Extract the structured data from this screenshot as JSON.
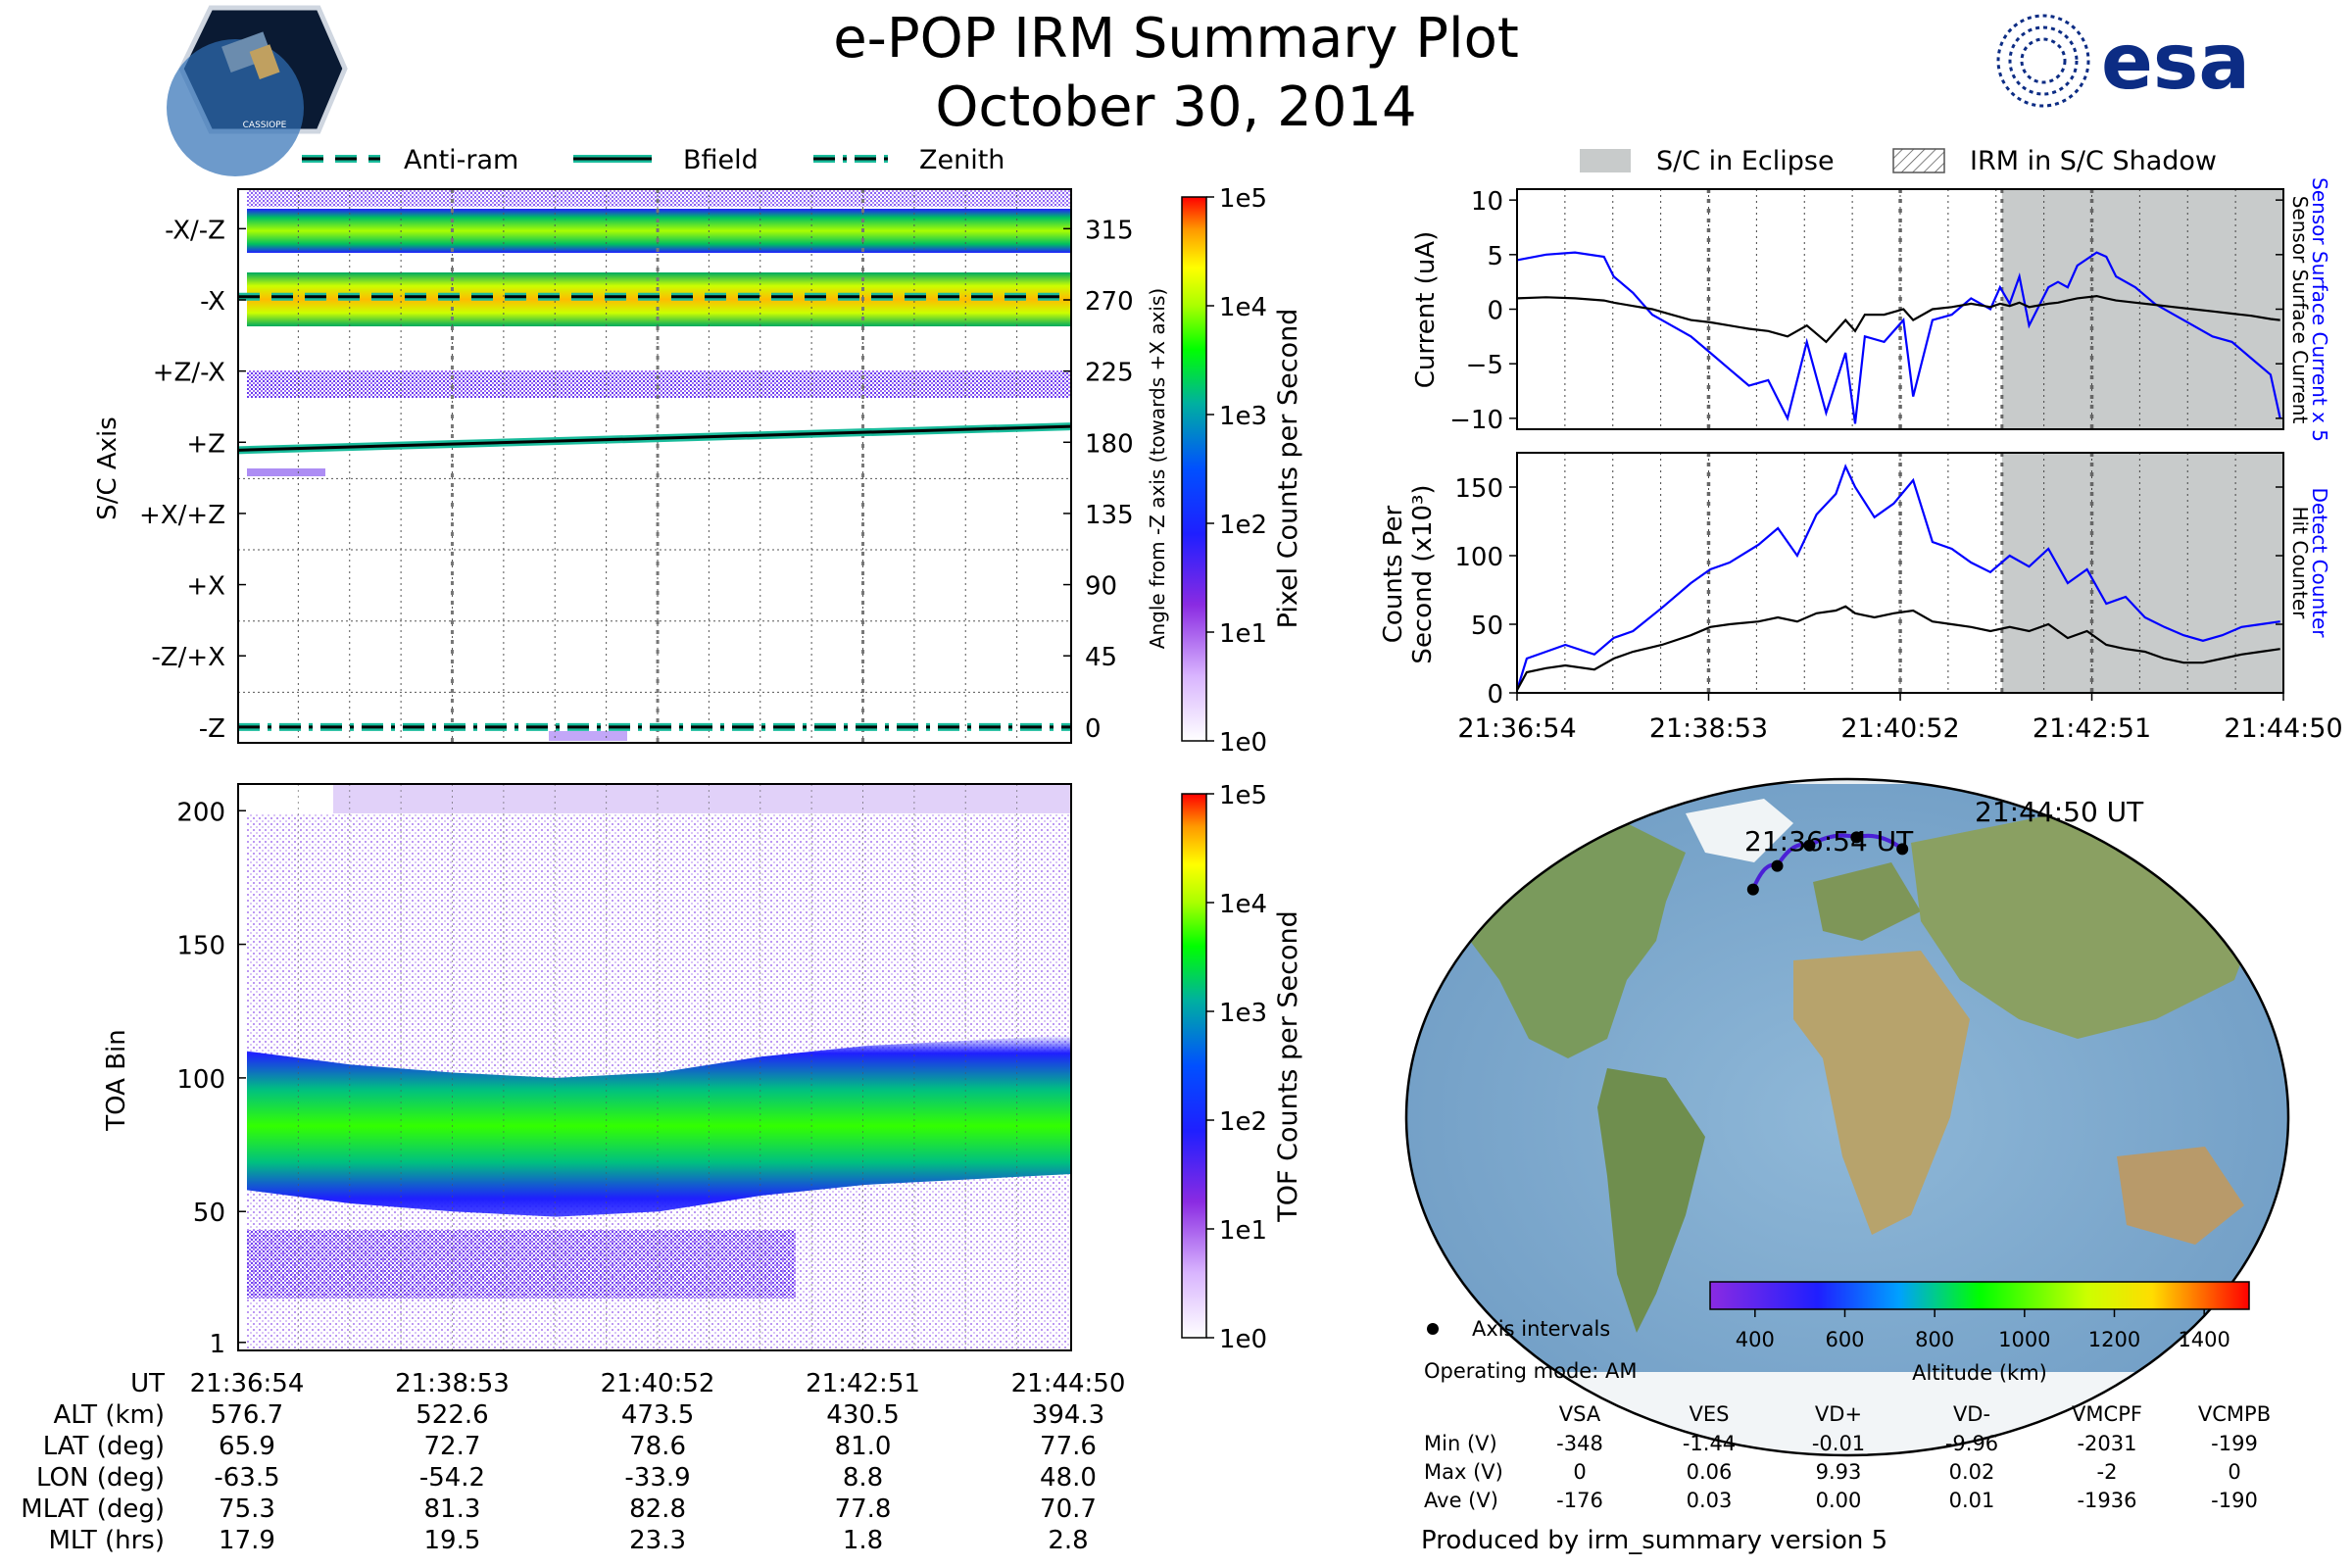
{
  "header": {
    "title": "e-POP IRM Summary Plot",
    "date": "October 30, 2014",
    "esa_logo_text": "esa",
    "cassiope_badge_text": "CASSIOPE"
  },
  "colors": {
    "bfield": "#1abc9c",
    "eclipse": "#c8cbcb",
    "sensor_current": "#0000ff",
    "hit_counter": "#000000",
    "orbit_track": "#4b1fd6",
    "esa_blue": "#0c2c84"
  },
  "legend_top": {
    "anti_ram": "Anti-ram",
    "bfield": "Bfield",
    "zenith": "Zenith"
  },
  "legend_right": {
    "eclipse": "S/C in Eclipse",
    "shadow": "IRM in S/C Shadow"
  },
  "chart_data": [
    {
      "id": "pixel_panel",
      "type": "heatmap",
      "ylabel": "S/C Axis",
      "ylabel_right": "Angle from -Z axis (towards +X axis)",
      "axis_labels": [
        "-X/-Z",
        "-X",
        "+Z/-X",
        "+Z",
        "+X/+Z",
        "+X",
        "-Z/+X",
        "-Z"
      ],
      "angle_ticks": [
        "315",
        "270",
        "225",
        "180",
        "135",
        "90",
        "45",
        "0"
      ],
      "angle_values": [
        315,
        270,
        225,
        180,
        135,
        90,
        45,
        0
      ],
      "ylim": [
        -10,
        340
      ],
      "lines": [
        {
          "name": "Anti-ram",
          "angle_start": 272,
          "angle_end": 272,
          "style": "dashed"
        },
        {
          "name": "Bfield",
          "angle_start": 175,
          "angle_end": 190,
          "style": "solid"
        },
        {
          "name": "Zenith",
          "angle_start": 0,
          "angle_end": 0,
          "style": "dashdot"
        }
      ],
      "colorbar": {
        "label": "Pixel Counts per Second",
        "ticks": [
          "1e5",
          "1e4",
          "1e3",
          "1e2",
          "1e1",
          "1e0"
        ],
        "scale": "log"
      }
    },
    {
      "id": "toa_panel",
      "type": "heatmap",
      "ylabel": "TOA Bin",
      "yticks": [
        "200",
        "150",
        "100",
        "50",
        "1"
      ],
      "ytick_values": [
        200,
        150,
        100,
        50,
        1
      ],
      "ylim": [
        -2,
        210
      ],
      "band_center_toa": [
        80,
        75,
        72,
        70,
        72,
        78,
        82,
        84,
        86
      ],
      "colorbar": {
        "label": "TOF Counts per Second",
        "ticks": [
          "1e5",
          "1e4",
          "1e3",
          "1e2",
          "1e1",
          "1e0"
        ],
        "scale": "log"
      }
    },
    {
      "id": "current_panel",
      "type": "line",
      "ylabel": "Current (uA)",
      "ylabel_right_1": "Sensor Surface Current x 5",
      "ylabel_right_2": "Sensor Surface Current",
      "yticks": [
        "10",
        "5",
        "0",
        "−5",
        "−10"
      ],
      "ytick_values": [
        10,
        5,
        0,
        -5,
        -10
      ],
      "ylim": [
        -11,
        11
      ],
      "x_minutes": [
        0,
        0.3,
        0.6,
        0.9,
        1.0,
        1.2,
        1.4,
        1.6,
        1.8,
        2.0,
        2.2,
        2.4,
        2.6,
        2.8,
        3.0,
        3.2,
        3.4,
        3.5,
        3.6,
        3.8,
        4.0,
        4.1,
        4.3,
        4.5,
        4.7,
        4.9,
        5.0,
        5.1,
        5.2,
        5.3,
        5.5,
        5.6,
        5.7,
        5.8,
        6.0,
        6.1,
        6.2,
        6.4,
        6.6,
        6.8,
        7.0,
        7.2,
        7.4,
        7.6,
        7.8,
        7.9
      ],
      "series": [
        {
          "name": "Sensor Surface Current x 5",
          "values": [
            4.5,
            5.0,
            5.2,
            4.8,
            3.0,
            1.5,
            -0.5,
            -1.5,
            -2.5,
            -4.0,
            -5.5,
            -7.0,
            -6.5,
            -10.0,
            -3.0,
            -9.5,
            -4.0,
            -10.5,
            -2.5,
            -3.0,
            -1.0,
            -8.0,
            -1.0,
            -0.5,
            1.0,
            0.0,
            2.0,
            0.5,
            3.0,
            -1.5,
            2.0,
            2.5,
            2.0,
            4.0,
            5.2,
            4.8,
            3.0,
            2.0,
            0.5,
            -0.5,
            -1.5,
            -2.5,
            -3.0,
            -4.5,
            -6.0,
            -10.0
          ]
        },
        {
          "name": "Sensor Surface Current",
          "values": [
            1.0,
            1.1,
            1.0,
            0.8,
            0.6,
            0.3,
            0.0,
            -0.5,
            -1.0,
            -1.2,
            -1.5,
            -1.8,
            -2.0,
            -2.5,
            -1.5,
            -3.0,
            -1.0,
            -2.0,
            -0.5,
            -0.5,
            0.0,
            -1.0,
            0.0,
            0.2,
            0.5,
            0.2,
            0.5,
            0.3,
            0.6,
            0.2,
            0.5,
            0.6,
            0.8,
            1.0,
            1.2,
            1.0,
            0.8,
            0.6,
            0.4,
            0.2,
            0.0,
            -0.2,
            -0.4,
            -0.6,
            -0.9,
            -1.0
          ]
        }
      ]
    },
    {
      "id": "counts_panel",
      "type": "line",
      "ylabel_line1": "Counts Per",
      "ylabel_line2": "Second (x10³)",
      "ylabel_right_1": "Detect Counter",
      "ylabel_right_2": "Hit Counter",
      "yticks": [
        "150",
        "100",
        "50",
        "0"
      ],
      "ytick_values": [
        150,
        100,
        50,
        0
      ],
      "ylim": [
        0,
        175
      ],
      "x_minutes": [
        0,
        0.1,
        0.3,
        0.5,
        0.8,
        1.0,
        1.2,
        1.5,
        1.8,
        2.0,
        2.2,
        2.5,
        2.7,
        2.9,
        3.1,
        3.3,
        3.4,
        3.5,
        3.7,
        3.9,
        4.1,
        4.3,
        4.5,
        4.7,
        4.9,
        5.1,
        5.3,
        5.5,
        5.7,
        5.9,
        6.1,
        6.3,
        6.5,
        6.7,
        6.9,
        7.1,
        7.3,
        7.5,
        7.7,
        7.9
      ],
      "series": [
        {
          "name": "Detect Counter",
          "values": [
            2,
            25,
            30,
            35,
            28,
            40,
            45,
            62,
            80,
            90,
            95,
            108,
            120,
            100,
            130,
            145,
            165,
            150,
            128,
            138,
            155,
            110,
            105,
            95,
            88,
            100,
            92,
            105,
            80,
            90,
            65,
            70,
            55,
            48,
            42,
            38,
            42,
            48,
            50,
            52
          ]
        },
        {
          "name": "Hit Counter",
          "values": [
            2,
            15,
            18,
            20,
            17,
            25,
            30,
            35,
            42,
            48,
            50,
            52,
            55,
            52,
            58,
            60,
            63,
            58,
            55,
            58,
            60,
            52,
            50,
            48,
            45,
            48,
            45,
            50,
            40,
            45,
            35,
            32,
            30,
            25,
            22,
            22,
            25,
            28,
            30,
            32
          ]
        }
      ]
    }
  ],
  "x_axis": {
    "tick_labels": [
      "21:36:54",
      "21:38:53",
      "21:40:52",
      "21:42:51",
      "21:44:50"
    ],
    "tick_minutes": [
      0,
      1.983,
      3.967,
      5.95,
      7.933
    ],
    "eclipse_start_minutes": 5.02,
    "eclipse_end_minutes": 7.933
  },
  "ephemeris": {
    "rows": [
      {
        "label": "UT",
        "values": [
          "21:36:54",
          "21:38:53",
          "21:40:52",
          "21:42:51",
          "21:44:50"
        ]
      },
      {
        "label": "ALT (km)",
        "values": [
          "576.7",
          "522.6",
          "473.5",
          "430.5",
          "394.3"
        ]
      },
      {
        "label": "LAT (deg)",
        "values": [
          "65.9",
          "72.7",
          "78.6",
          "81.0",
          "77.6"
        ]
      },
      {
        "label": "LON (deg)",
        "values": [
          "-63.5",
          "-54.2",
          "-33.9",
          "8.8",
          "48.0"
        ]
      },
      {
        "label": "MLAT (deg)",
        "values": [
          "75.3",
          "81.3",
          "82.8",
          "77.8",
          "70.7"
        ]
      },
      {
        "label": "MLT (hrs)",
        "values": [
          "17.9",
          "19.5",
          "23.3",
          "1.8",
          "2.8"
        ]
      }
    ]
  },
  "map": {
    "start_label": "21:36:54 UT",
    "end_label": "21:44:50 UT",
    "track_points": [
      [
        -63.5,
        65.9
      ],
      [
        -54.2,
        72.7
      ],
      [
        -33.9,
        78.6
      ],
      [
        8.8,
        81.0
      ],
      [
        48.0,
        77.6
      ]
    ],
    "altitude_colorbar": {
      "label": "Altitude (km)",
      "ticks": [
        "400",
        "600",
        "800",
        "1000",
        "1200",
        "1400"
      ],
      "tick_values": [
        400,
        600,
        800,
        1000,
        1200,
        1400
      ],
      "range": [
        300,
        1500
      ]
    }
  },
  "footer": {
    "axis_intervals": "Axis intervals",
    "operating_mode": "Operating mode: AM",
    "voltage_table": {
      "columns": [
        "VSA",
        "VES",
        "VD+",
        "VD-",
        "VMCPF",
        "VCMPB"
      ],
      "rows": [
        {
          "label": "Min (V)",
          "values": [
            "-348",
            "-1.44",
            "-0.01",
            "-9.96",
            "-2031",
            "-199"
          ]
        },
        {
          "label": "Max (V)",
          "values": [
            "0",
            "0.06",
            "9.93",
            "0.02",
            "-2",
            "0"
          ]
        },
        {
          "label": "Ave (V)",
          "values": [
            "-176",
            "0.03",
            "0.00",
            "0.01",
            "-1936",
            "-190"
          ]
        }
      ]
    },
    "produced_by": "Produced by irm_summary version 5"
  }
}
